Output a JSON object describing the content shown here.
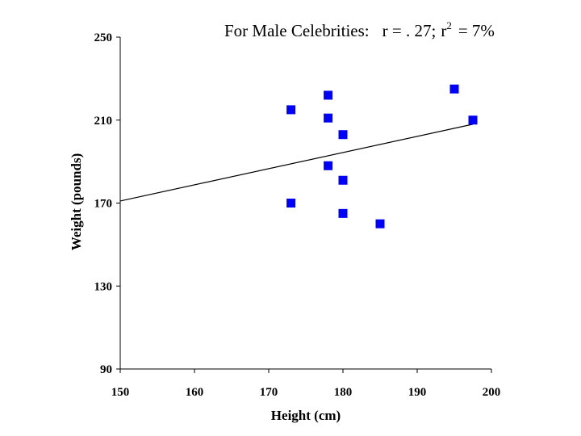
{
  "chart_data": {
    "type": "scatter",
    "title_prefix": "For Male Celebrities:",
    "title_r": "r = . 27;",
    "title_r2_base": "r",
    "title_r2_exp": "2",
    "title_r2_value": "= 7%",
    "xlabel": "Height (cm)",
    "ylabel": "Weight (pounds)",
    "xlim": [
      150,
      200
    ],
    "ylim": [
      90,
      250
    ],
    "x_ticks": [
      150,
      160,
      170,
      180,
      190,
      200
    ],
    "y_ticks": [
      90,
      130,
      170,
      210,
      250
    ],
    "grid": false,
    "marker_color": "#0000ff",
    "line_color": "#000000",
    "points": [
      {
        "x": 173,
        "y": 215
      },
      {
        "x": 173,
        "y": 170
      },
      {
        "x": 178,
        "y": 222
      },
      {
        "x": 178,
        "y": 211
      },
      {
        "x": 178,
        "y": 188
      },
      {
        "x": 180,
        "y": 203
      },
      {
        "x": 180,
        "y": 181
      },
      {
        "x": 180,
        "y": 165
      },
      {
        "x": 185,
        "y": 160
      },
      {
        "x": 195,
        "y": 225
      },
      {
        "x": 197.5,
        "y": 210
      }
    ],
    "trendline": {
      "x": [
        150,
        197.5
      ],
      "y": [
        171,
        208
      ]
    }
  }
}
